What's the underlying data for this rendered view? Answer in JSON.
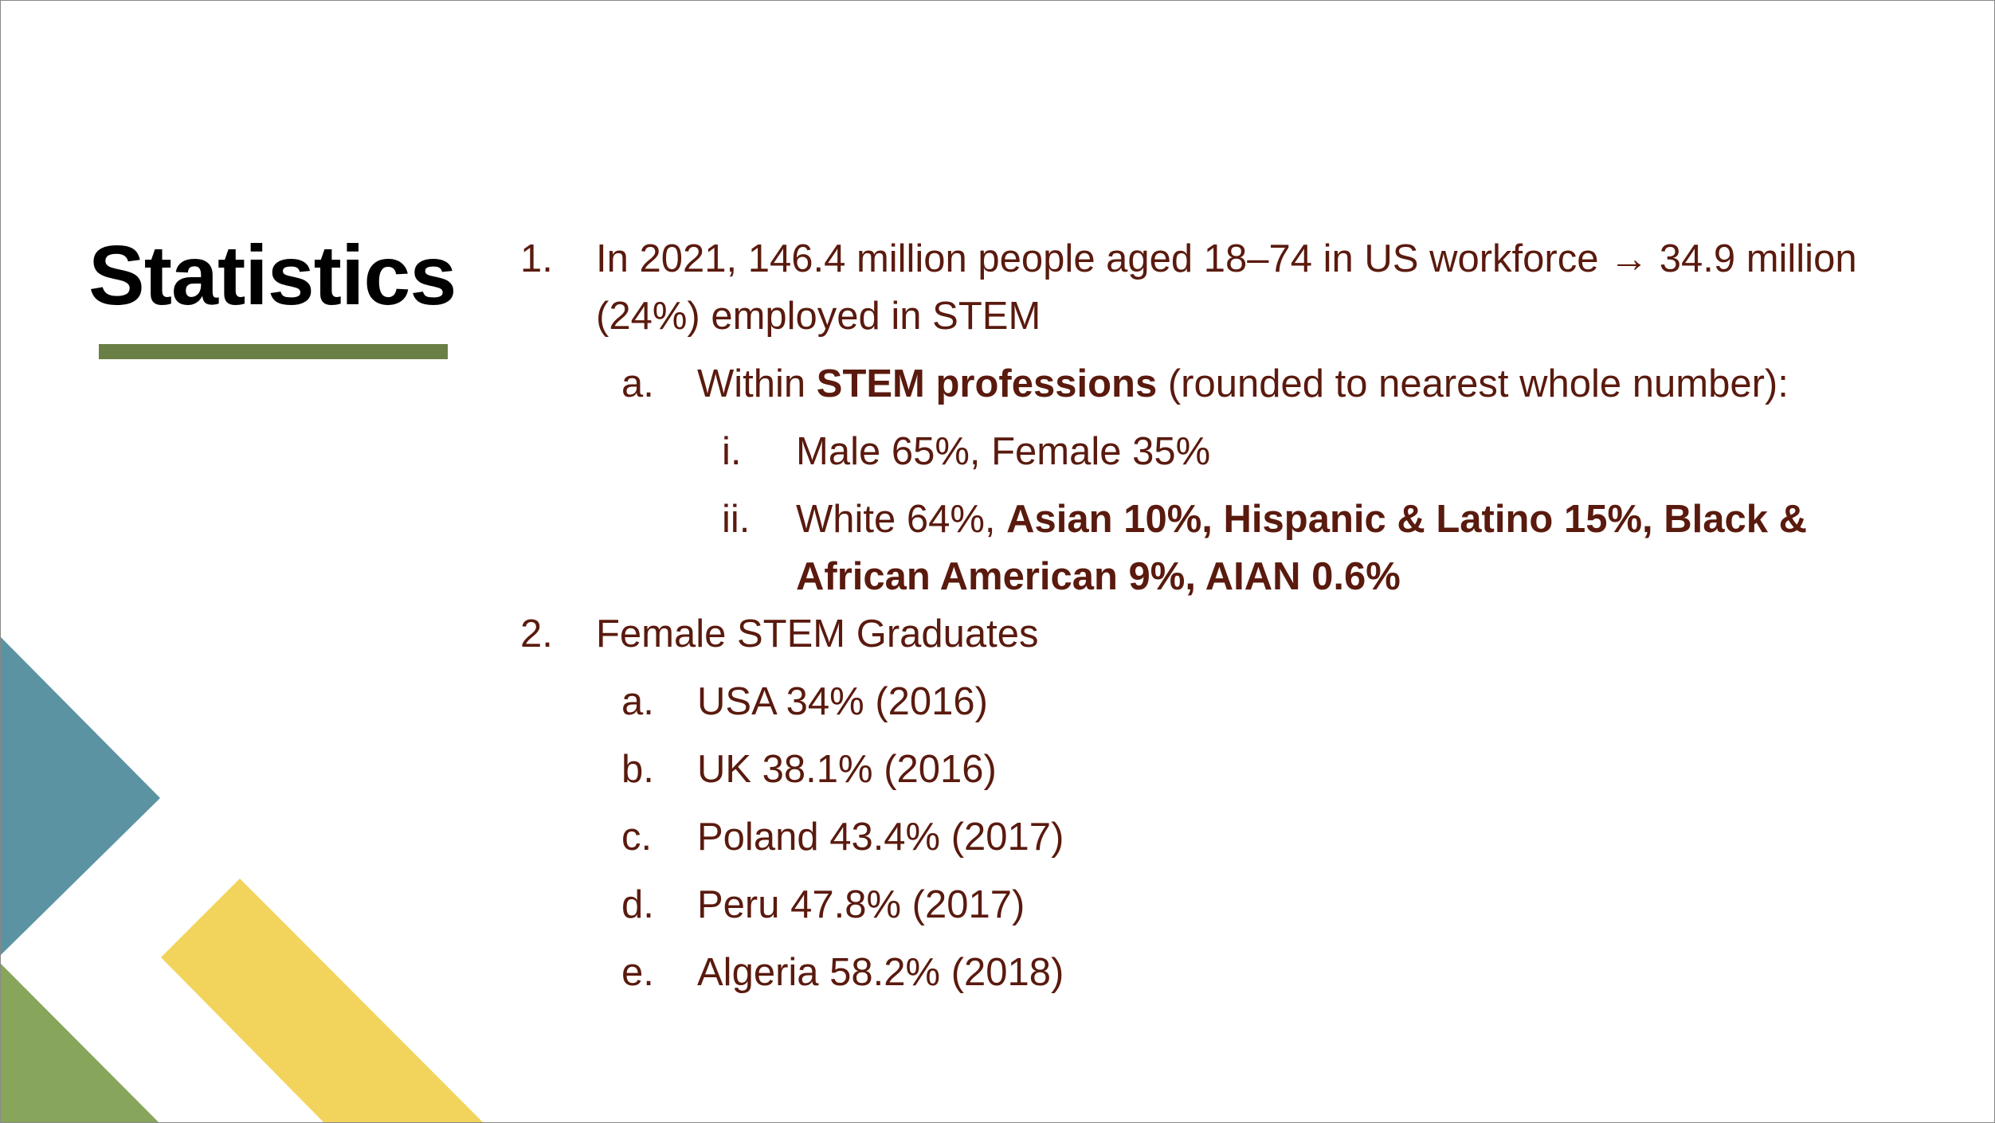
{
  "title": "Statistics",
  "list": [
    {
      "marker": "1.",
      "runs": [
        {
          "text": "In 2021, 146.4 million people aged 18–74 in US workforce → 34.9 million (24%) employed in STEM"
        }
      ],
      "items": [
        {
          "marker": "a.",
          "runs": [
            {
              "text": "Within "
            },
            {
              "text": "STEM professions",
              "bold": true
            },
            {
              "text": " (rounded to nearest whole number):"
            }
          ],
          "items": [
            {
              "marker": "i.",
              "runs": [
                {
                  "text": "Male 65%, Female 35%"
                }
              ]
            },
            {
              "marker": "ii.",
              "runs": [
                {
                  "text": "White 64%, "
                },
                {
                  "text": "Asian 10%, Hispanic & Latino 15%, Black & African American 9%, AIAN 0.6%",
                  "bold": true
                }
              ]
            }
          ]
        }
      ]
    },
    {
      "marker": "2.",
      "runs": [
        {
          "text": "Female STEM Graduates"
        }
      ],
      "items": [
        {
          "marker": "a.",
          "runs": [
            {
              "text": "USA 34% (2016)"
            }
          ]
        },
        {
          "marker": "b.",
          "runs": [
            {
              "text": "UK 38.1% (2016)"
            }
          ]
        },
        {
          "marker": "c.",
          "runs": [
            {
              "text": "Poland 43.4% (2017)"
            }
          ]
        },
        {
          "marker": "d.",
          "runs": [
            {
              "text": "Peru 47.8% (2017)"
            }
          ]
        },
        {
          "marker": "e.",
          "runs": [
            {
              "text": "Algeria 58.2% (2018)"
            }
          ]
        }
      ]
    }
  ]
}
